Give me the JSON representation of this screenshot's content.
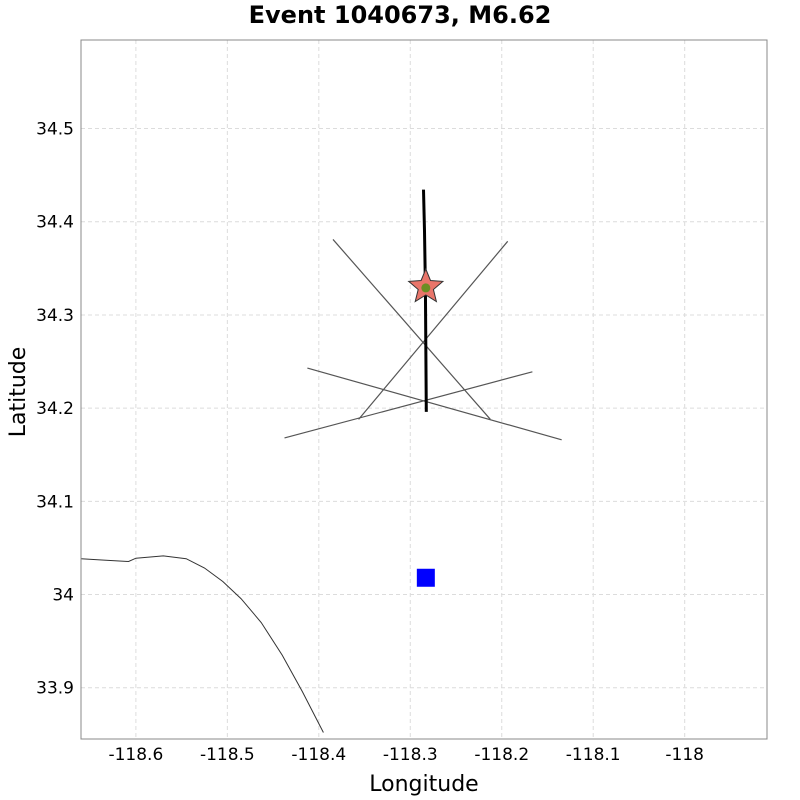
{
  "chart_data": {
    "type": "scatter",
    "title": "Event 1040673, M6.62",
    "xlabel": "Longitude",
    "ylabel": "Latitude",
    "xlim": [
      -118.66,
      -117.91
    ],
    "ylim": [
      33.845,
      34.595
    ],
    "grid": true,
    "x_ticks": [
      {
        "value": -118.6,
        "label": "-118.6"
      },
      {
        "value": -118.5,
        "label": "-118.5"
      },
      {
        "value": -118.4,
        "label": "-118.4"
      },
      {
        "value": -118.3,
        "label": "-118.3"
      },
      {
        "value": -118.2,
        "label": "-118.2"
      },
      {
        "value": -118.1,
        "label": "-118.1"
      },
      {
        "value": -118.0,
        "label": "-118"
      }
    ],
    "y_ticks": [
      {
        "value": 33.9,
        "label": "33.9"
      },
      {
        "value": 34.0,
        "label": "34"
      },
      {
        "value": 34.1,
        "label": "34.1"
      },
      {
        "value": 34.2,
        "label": "34.2"
      },
      {
        "value": 34.3,
        "label": "34.3"
      },
      {
        "value": 34.4,
        "label": "34.4"
      },
      {
        "value": 34.5,
        "label": "34.5"
      }
    ],
    "coastline": [
      [
        -118.66,
        34.0385
      ],
      [
        -118.635,
        34.037
      ],
      [
        -118.608,
        34.0355
      ],
      [
        -118.6,
        34.039
      ],
      [
        -118.57,
        34.0415
      ],
      [
        -118.545,
        34.0385
      ],
      [
        -118.525,
        34.0285
      ],
      [
        -118.505,
        34.014
      ],
      [
        -118.485,
        33.9955
      ],
      [
        -118.463,
        33.97
      ],
      [
        -118.44,
        33.935
      ],
      [
        -118.418,
        33.896
      ],
      [
        -118.395,
        33.852
      ]
    ],
    "fault_trace": [
      [
        -118.2855,
        34.4345
      ],
      [
        -118.2845,
        34.39
      ],
      [
        -118.2835,
        34.33
      ],
      [
        -118.283,
        34.27
      ],
      [
        -118.2825,
        34.196
      ]
    ],
    "geometry_lines": [
      [
        [
          -118.3845,
          34.381
        ],
        [
          -118.2125,
          34.188
        ]
      ],
      [
        [
          -118.3565,
          34.188
        ],
        [
          -118.1935,
          34.379
        ]
      ],
      [
        [
          -118.4125,
          34.243
        ],
        [
          -118.1345,
          34.166
        ]
      ],
      [
        [
          -118.4375,
          34.168
        ],
        [
          -118.1665,
          34.239
        ]
      ]
    ],
    "epicenter": {
      "lon": -118.283,
      "lat": 34.33,
      "color": "#e9756a",
      "marker": "star"
    },
    "hypocenter_dot": {
      "lon": -118.283,
      "lat": 34.329,
      "color": "#6b8e23"
    },
    "station": {
      "lon": -118.283,
      "lat": 34.018,
      "color": "#0000ff",
      "marker": "square"
    }
  }
}
